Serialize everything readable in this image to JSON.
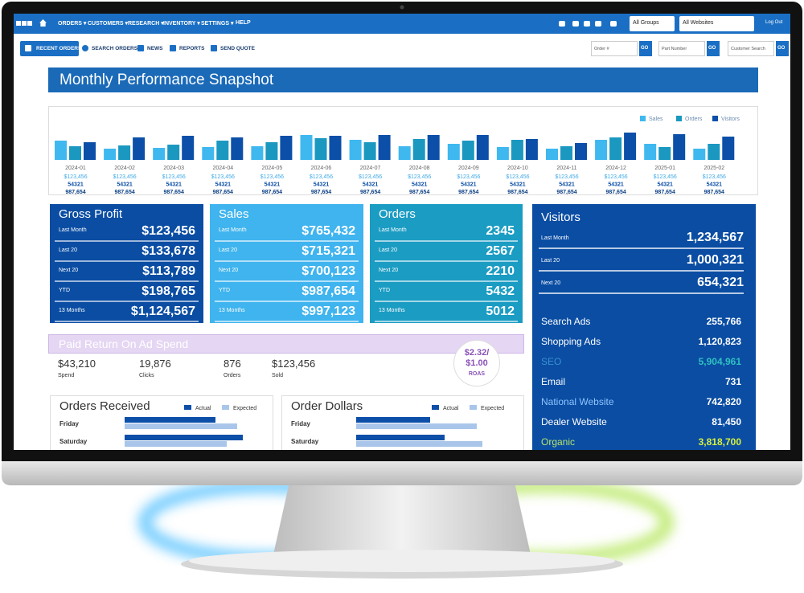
{
  "nav": {
    "menu": [
      "ORDERS",
      "CUSTOMERS",
      "RESEARCH",
      "INVENTORY",
      "SETTINGS",
      "HELP"
    ],
    "group_select": "All Groups",
    "website_select": "All Websites",
    "logout": "Log Out"
  },
  "toolbar": {
    "buttons": [
      "RECENT ORDERS",
      "SEARCH ORDERS",
      "NEWS",
      "REPORTS",
      "SEND QUOTE"
    ],
    "searches": [
      {
        "placeholder": "Order #",
        "button": "GO"
      },
      {
        "placeholder": "Part Number",
        "button": "GO"
      },
      {
        "placeholder": "Customer Search",
        "button": "GO"
      }
    ]
  },
  "title": "Monthly Performance Snapshot",
  "chart_data": [
    {
      "type": "bar",
      "categories": [
        "2024-01",
        "2024-02",
        "2024-03",
        "2024-04",
        "2024-05",
        "2024-06",
        "2024-07",
        "2024-08",
        "2024-09",
        "2024-10",
        "2024-11",
        "2024-12",
        "2025-01",
        "2025-02"
      ],
      "series": [
        {
          "name": "Sales",
          "color": "#3fb8f0",
          "values": [
            24,
            14,
            15,
            16,
            17,
            31,
            25,
            17,
            20,
            16,
            14,
            25,
            20,
            14
          ]
        },
        {
          "name": "Orders",
          "color": "#1b98c0",
          "values": [
            17,
            18,
            19,
            24,
            22,
            27,
            22,
            26,
            24,
            25,
            17,
            28,
            16,
            20
          ]
        },
        {
          "name": "Visitors",
          "color": "#0c4fa8",
          "values": [
            22,
            28,
            30,
            28,
            30,
            30,
            31,
            31,
            31,
            26,
            21,
            34,
            32,
            29
          ]
        }
      ],
      "legend": "top-right",
      "month_figures": [
        [
          "$123,456",
          "54321",
          "987,654"
        ],
        [
          "$123,456",
          "54321",
          "987,654"
        ],
        [
          "$123,456",
          "54321",
          "987,654"
        ],
        [
          "$123,456",
          "54321",
          "987,654"
        ],
        [
          "$123,456",
          "54321",
          "987,654"
        ],
        [
          "$123,456",
          "54321",
          "987,654"
        ],
        [
          "$123,456",
          "54321",
          "987,654"
        ],
        [
          "$123,456",
          "54321",
          "987,654"
        ],
        [
          "$123,456",
          "54321",
          "987,654"
        ],
        [
          "$123,456",
          "54321",
          "987,654"
        ],
        [
          "$123,456",
          "54321",
          "987,654"
        ],
        [
          "$123,456",
          "54321",
          "987,654"
        ],
        [
          "$123,456",
          "54321",
          "987,654"
        ],
        [
          "$123,456",
          "54321",
          "987,654"
        ]
      ]
    },
    {
      "type": "hbar",
      "title": "Orders Received",
      "categories": [
        "Friday",
        "Saturday"
      ],
      "series": [
        {
          "name": "Actual",
          "color": "#0c4fa8",
          "values": [
            113,
            147
          ]
        },
        {
          "name": "Expected",
          "color": "#a9c6ea",
          "values": [
            140,
            127
          ]
        }
      ]
    },
    {
      "type": "hbar",
      "title": "Order Dollars",
      "categories": [
        "Friday",
        "Saturday"
      ],
      "series": [
        {
          "name": "Actual",
          "color": "#0c4fa8",
          "values": [
            92,
            110
          ]
        },
        {
          "name": "Expected",
          "color": "#a9c6ea",
          "values": [
            150,
            157
          ]
        }
      ]
    }
  ],
  "cards": [
    {
      "title": "Gross Profit",
      "rows": [
        [
          "Last Month",
          "$123,456"
        ],
        [
          "Last 20",
          "$133,678"
        ],
        [
          "Next 20",
          "$113,789"
        ],
        [
          "YTD",
          "$198,765"
        ],
        [
          "13 Months",
          "$1,124,567"
        ]
      ]
    },
    {
      "title": "Sales",
      "rows": [
        [
          "Last Month",
          "$765,432"
        ],
        [
          "Last 20",
          "$715,321"
        ],
        [
          "Next 20",
          "$700,123"
        ],
        [
          "YTD",
          "$987,654"
        ],
        [
          "13 Months",
          "$997,123"
        ]
      ]
    },
    {
      "title": "Orders",
      "rows": [
        [
          "Last Month",
          "2345"
        ],
        [
          "Last 20",
          "2567"
        ],
        [
          "Next 20",
          "2210"
        ],
        [
          "YTD",
          "5432"
        ],
        [
          "13 Months",
          "5012"
        ]
      ]
    }
  ],
  "visitors": {
    "title": "Visitors",
    "rows": [
      [
        "Last Month",
        "1,234,567"
      ],
      [
        "Last 20",
        "1,000,321"
      ],
      [
        "Next 20",
        "654,321"
      ]
    ],
    "sources": [
      [
        "Search Ads",
        "255,766"
      ],
      [
        "Shopping Ads",
        "1,120,823"
      ],
      [
        "SEO",
        "5,904,961"
      ],
      [
        "Email",
        "731"
      ],
      [
        "National Website",
        "742,820"
      ],
      [
        "Dealer Website",
        "81,450"
      ],
      [
        "Organic",
        "3,818,700"
      ]
    ]
  },
  "roas": {
    "title": "Paid Return On Ad Spend",
    "stats": [
      [
        "$43,210",
        "Spend"
      ],
      [
        "19,876",
        "Clicks"
      ],
      [
        "876",
        "Orders"
      ],
      [
        "$123,456",
        "Sold"
      ]
    ],
    "ratio_lines": [
      "$2.32/",
      "$1.00"
    ],
    "ratio_label": "ROAS"
  }
}
